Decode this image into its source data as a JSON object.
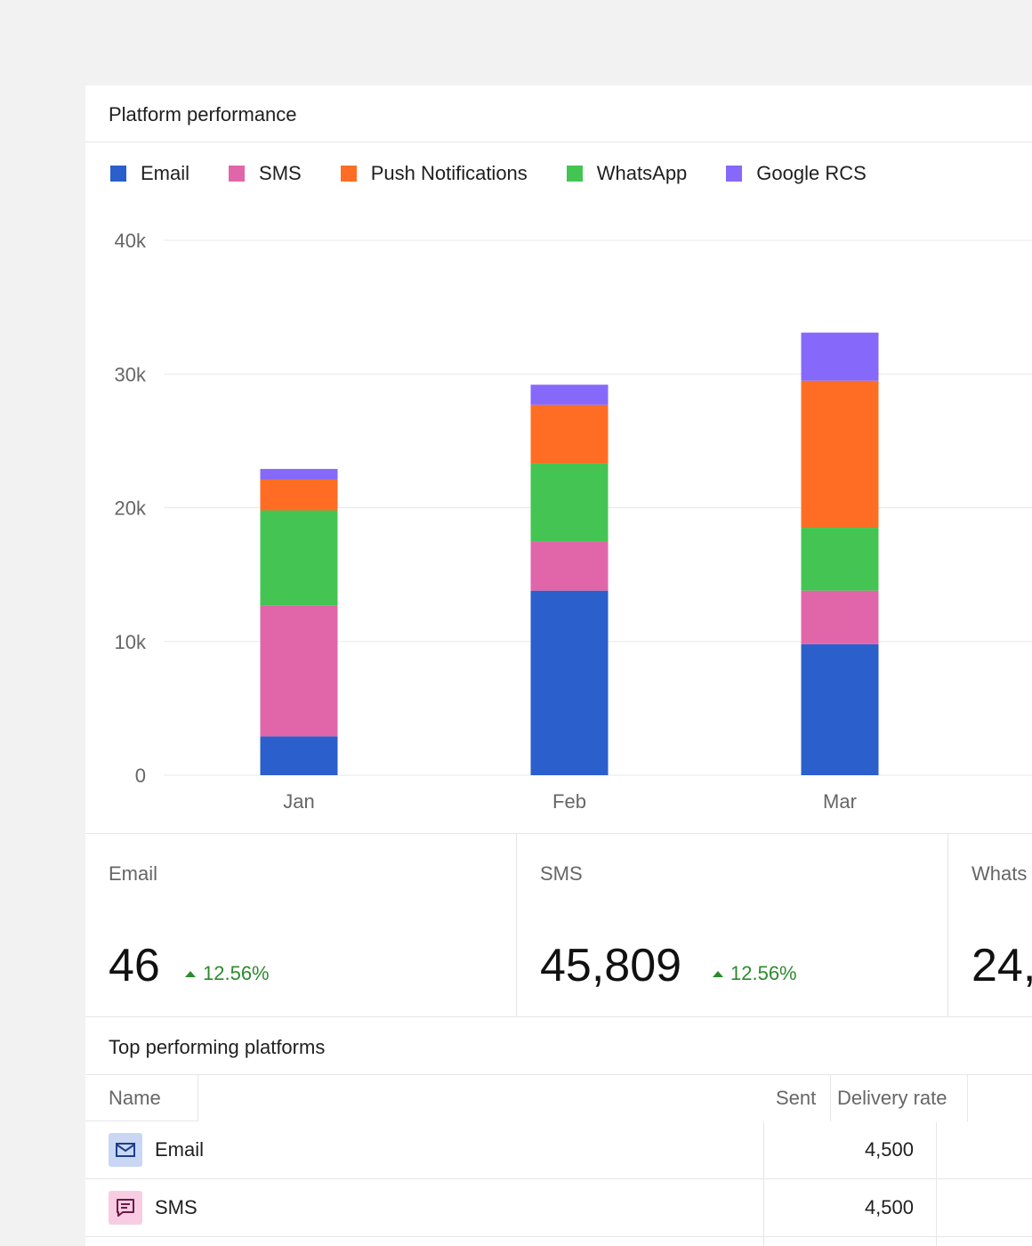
{
  "card": {
    "title": "Platform performance"
  },
  "legend": [
    {
      "label": "Email",
      "color": "#2a5fcc"
    },
    {
      "label": "SMS",
      "color": "#e066a9"
    },
    {
      "label": "Push Notifications",
      "color": "#ff6d24"
    },
    {
      "label": "WhatsApp",
      "color": "#44c553"
    },
    {
      "label": "Google RCS",
      "color": "#8669fb"
    }
  ],
  "chart_data": {
    "type": "bar",
    "stacked": true,
    "categories": [
      "Jan",
      "Feb",
      "Mar"
    ],
    "series": [
      {
        "name": "Email",
        "color": "#2a5fcc",
        "values": [
          2900,
          13800,
          9800
        ]
      },
      {
        "name": "SMS",
        "color": "#e066a9",
        "values": [
          9800,
          3700,
          4000
        ]
      },
      {
        "name": "WhatsApp",
        "color": "#44c553",
        "values": [
          7100,
          5800,
          4700
        ]
      },
      {
        "name": "Push Notifications",
        "color": "#ff6d24",
        "values": [
          2300,
          4400,
          11000
        ]
      },
      {
        "name": "Google RCS",
        "color": "#8669fb",
        "values": [
          800,
          1500,
          3600
        ]
      }
    ],
    "ylim": [
      0,
      40000
    ],
    "yticks": [
      0,
      10000,
      20000,
      30000,
      40000
    ],
    "ytick_labels": [
      "0",
      "10k",
      "20k",
      "30k",
      "40k"
    ],
    "grid": true,
    "legend": "top-left"
  },
  "stats": [
    {
      "label": "Email",
      "value": "46",
      "change": "12.56%"
    },
    {
      "label": "SMS",
      "value": "45,809",
      "change": "12.56%"
    },
    {
      "label": "Whats",
      "value": "24,"
    }
  ],
  "table": {
    "title": "Top performing platforms",
    "headers": {
      "name": "Name",
      "sent": "Sent",
      "delivery_rate": "Delivery rate"
    },
    "rows": [
      {
        "name": "Email",
        "sent": "4,500",
        "icon": "mail-icon",
        "icon_bg": "#c9d7f5",
        "icon_color": "#1d3f8a"
      },
      {
        "name": "SMS",
        "sent": "4,500",
        "icon": "message-icon",
        "icon_bg": "#f8cde3",
        "icon_color": "#6a1b44"
      }
    ]
  }
}
